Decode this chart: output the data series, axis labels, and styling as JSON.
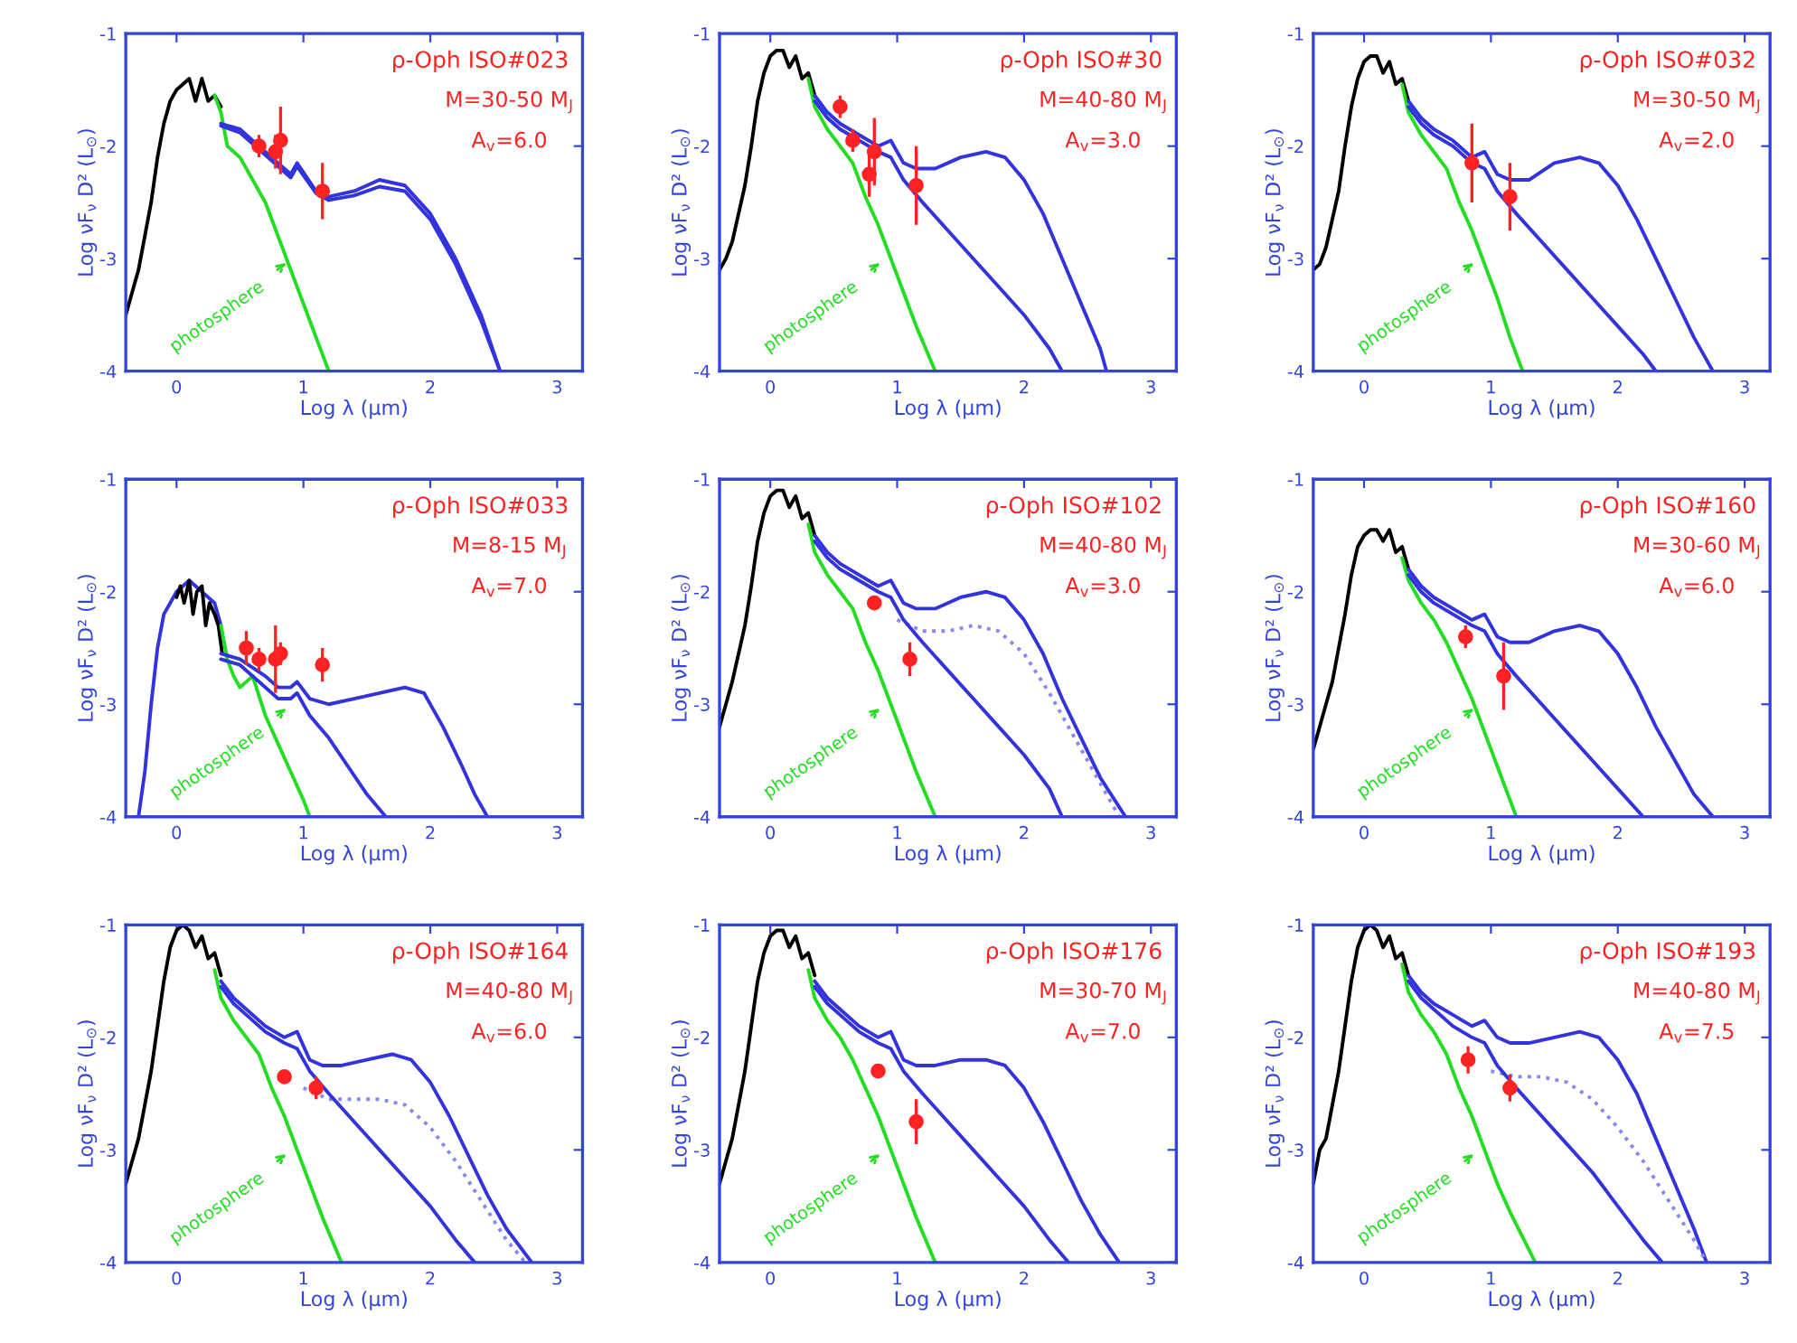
{
  "chart_data": [
    {
      "type": "line",
      "title": "ρ-Oph ISO#023",
      "xlabel": "Log λ (μm)",
      "ylabel": "Log νF$_{ν}$ D² (L$_{⊙}$)",
      "xlim": [
        -0.4,
        3.2
      ],
      "ylim": [
        -4,
        -1
      ],
      "xticks": [
        0,
        1,
        2,
        3
      ],
      "yticks": [
        -4,
        -3,
        -2,
        -1
      ],
      "marker": "none",
      "line_style": "solid",
      "annotations": [
        "M=30-50 M$_{J}$",
        "A$_{v}$=6.0",
        "photosphere"
      ],
      "series": [
        {
          "color": "#000000",
          "x": [
            -0.4,
            -0.35,
            -0.3,
            -0.25,
            -0.2,
            -0.15,
            -0.1,
            -0.05,
            0,
            0.05,
            0.1,
            0.15,
            0.2,
            0.25,
            0.3,
            0.35
          ],
          "values": [
            -3.5,
            -3.3,
            -3.1,
            -2.8,
            -2.5,
            -2.1,
            -1.8,
            -1.6,
            -1.5,
            -1.45,
            -1.4,
            -1.6,
            -1.4,
            -1.6,
            -1.55,
            -1.65
          ]
        },
        {
          "color": "#22dd22",
          "x": [
            0.3,
            0.35,
            0.4,
            0.5,
            0.6,
            0.7,
            0.8,
            0.9,
            1.0,
            1.1,
            1.2
          ],
          "values": [
            -1.55,
            -1.7,
            -2.0,
            -2.1,
            -2.3,
            -2.5,
            -2.8,
            -3.1,
            -3.4,
            -3.7,
            -4.0
          ]
        },
        {
          "color": "#3333dd",
          "x": [
            0.35,
            0.5,
            0.65,
            0.8,
            0.9,
            0.95,
            1.1,
            1.2,
            1.4,
            1.6,
            1.8,
            2.0,
            2.2,
            2.4,
            2.55
          ],
          "values": [
            -1.8,
            -1.85,
            -2.0,
            -2.15,
            -2.25,
            -2.15,
            -2.4,
            -2.45,
            -2.4,
            -2.3,
            -2.35,
            -2.6,
            -3.0,
            -3.5,
            -4.0
          ]
        },
        {
          "color": "#3333dd",
          "x": [
            0.35,
            0.5,
            0.65,
            0.8,
            0.9,
            0.95,
            1.1,
            1.2,
            1.4,
            1.6,
            1.8,
            2.0,
            2.2,
            2.4,
            2.55
          ],
          "values": [
            -1.82,
            -1.88,
            -2.03,
            -2.18,
            -2.28,
            -2.18,
            -2.42,
            -2.48,
            -2.44,
            -2.36,
            -2.4,
            -2.65,
            -3.05,
            -3.55,
            -4.0
          ]
        },
        {
          "type": "scatter",
          "color": "#ff2222",
          "marker": "circle",
          "x": [
            0.65,
            0.78,
            0.82,
            1.15
          ],
          "values": [
            -2.0,
            -2.05,
            -1.95,
            -2.4
          ],
          "errors": [
            0.1,
            0.15,
            0.3,
            0.25
          ]
        }
      ]
    },
    {
      "type": "line",
      "title": "ρ-Oph ISO#30",
      "xlabel": "Log λ (μm)",
      "ylabel": "Log νF$_{ν}$ D² (L$_{⊙}$)",
      "xlim": [
        -0.4,
        3.2
      ],
      "ylim": [
        -4,
        -1
      ],
      "xticks": [
        0,
        1,
        2,
        3
      ],
      "yticks": [
        -4,
        -3,
        -2,
        -1
      ],
      "marker": "none",
      "line_style": "solid",
      "annotations": [
        "M=40-80 M$_{J}$",
        "A$_{v}$=3.0",
        "photosphere"
      ],
      "series": [
        {
          "color": "#000000",
          "x": [
            -0.4,
            -0.35,
            -0.3,
            -0.25,
            -0.2,
            -0.15,
            -0.1,
            -0.05,
            0,
            0.05,
            0.1,
            0.15,
            0.2,
            0.25,
            0.3,
            0.35
          ],
          "values": [
            -3.1,
            -3.0,
            -2.85,
            -2.6,
            -2.35,
            -2.0,
            -1.6,
            -1.35,
            -1.2,
            -1.15,
            -1.15,
            -1.3,
            -1.2,
            -1.4,
            -1.35,
            -1.55
          ]
        },
        {
          "color": "#22dd22",
          "x": [
            0.3,
            0.35,
            0.45,
            0.55,
            0.65,
            0.75,
            0.85,
            0.95,
            1.05,
            1.15,
            1.3
          ],
          "values": [
            -1.4,
            -1.65,
            -1.85,
            -2.0,
            -2.15,
            -2.45,
            -2.7,
            -3.0,
            -3.3,
            -3.6,
            -4.0
          ]
        },
        {
          "color": "#3333dd",
          "x": [
            0.35,
            0.45,
            0.55,
            0.7,
            0.85,
            0.95,
            1.05,
            1.15,
            1.3,
            1.5,
            1.7,
            1.85,
            2.0,
            2.15,
            2.3,
            2.45,
            2.6,
            2.65
          ],
          "values": [
            -1.55,
            -1.7,
            -1.8,
            -1.9,
            -2.0,
            -1.95,
            -2.15,
            -2.2,
            -2.2,
            -2.1,
            -2.05,
            -2.1,
            -2.3,
            -2.6,
            -3.0,
            -3.4,
            -3.8,
            -4.0
          ]
        },
        {
          "color": "#3333dd",
          "x": [
            0.35,
            0.45,
            0.55,
            0.7,
            0.85,
            0.95,
            1.05,
            1.2,
            1.4,
            1.6,
            1.8,
            2.0,
            2.2,
            2.3
          ],
          "values": [
            -1.6,
            -1.75,
            -1.85,
            -1.95,
            -2.05,
            -2.1,
            -2.3,
            -2.5,
            -2.75,
            -3.0,
            -3.25,
            -3.5,
            -3.8,
            -4.0
          ]
        },
        {
          "type": "scatter",
          "color": "#ff2222",
          "marker": "circle",
          "x": [
            0.55,
            0.65,
            0.78,
            0.82,
            1.15
          ],
          "values": [
            -1.65,
            -1.95,
            -2.25,
            -2.05,
            -2.35
          ],
          "errors": [
            0.1,
            0.1,
            0.2,
            0.3,
            0.35
          ]
        }
      ]
    },
    {
      "type": "line",
      "title": "ρ-Oph ISO#032",
      "xlabel": "Log λ (μm)",
      "ylabel": "Log νF$_{ν}$ D² (L$_{⊙}$)",
      "xlim": [
        -0.4,
        3.2
      ],
      "ylim": [
        -4,
        -1
      ],
      "xticks": [
        0,
        1,
        2,
        3
      ],
      "yticks": [
        -4,
        -3,
        -2,
        -1
      ],
      "marker": "none",
      "line_style": "solid",
      "annotations": [
        "M=30-50 M$_{J}$",
        "A$_{v}$=2.0",
        "photosphere"
      ],
      "series": [
        {
          "color": "#000000",
          "x": [
            -0.4,
            -0.35,
            -0.3,
            -0.25,
            -0.2,
            -0.15,
            -0.1,
            -0.05,
            0,
            0.05,
            0.1,
            0.15,
            0.2,
            0.25,
            0.3,
            0.35
          ],
          "values": [
            -3.1,
            -3.05,
            -2.9,
            -2.65,
            -2.4,
            -2.0,
            -1.65,
            -1.4,
            -1.25,
            -1.2,
            -1.2,
            -1.35,
            -1.25,
            -1.45,
            -1.4,
            -1.6
          ]
        },
        {
          "color": "#22dd22",
          "x": [
            0.3,
            0.35,
            0.45,
            0.55,
            0.65,
            0.75,
            0.85,
            0.95,
            1.05,
            1.15,
            1.25
          ],
          "values": [
            -1.45,
            -1.7,
            -1.9,
            -2.05,
            -2.2,
            -2.5,
            -2.75,
            -3.05,
            -3.35,
            -3.7,
            -4.0
          ]
        },
        {
          "color": "#3333dd",
          "x": [
            0.35,
            0.45,
            0.55,
            0.7,
            0.85,
            0.95,
            1.05,
            1.15,
            1.3,
            1.5,
            1.7,
            1.85,
            2.0,
            2.15,
            2.3,
            2.45,
            2.6,
            2.75
          ],
          "values": [
            -1.6,
            -1.75,
            -1.85,
            -1.95,
            -2.1,
            -2.05,
            -2.25,
            -2.3,
            -2.3,
            -2.15,
            -2.1,
            -2.15,
            -2.35,
            -2.65,
            -3.0,
            -3.35,
            -3.7,
            -4.0
          ]
        },
        {
          "color": "#3333dd",
          "x": [
            0.35,
            0.45,
            0.55,
            0.7,
            0.85,
            0.95,
            1.05,
            1.2,
            1.4,
            1.6,
            1.8,
            2.0,
            2.2,
            2.3
          ],
          "values": [
            -1.65,
            -1.8,
            -1.9,
            -2.0,
            -2.15,
            -2.2,
            -2.4,
            -2.6,
            -2.85,
            -3.1,
            -3.35,
            -3.6,
            -3.85,
            -4.0
          ]
        },
        {
          "type": "scatter",
          "color": "#ff2222",
          "marker": "circle",
          "x": [
            0.85,
            1.15
          ],
          "values": [
            -2.15,
            -2.45
          ],
          "errors": [
            0.35,
            0.3
          ]
        }
      ]
    },
    {
      "type": "line",
      "title": "ρ-Oph ISO#033",
      "xlabel": "Log λ (μm)",
      "ylabel": "Log νF$_{ν}$ D² (L$_{⊙}$)",
      "xlim": [
        -0.4,
        3.2
      ],
      "ylim": [
        -4,
        -1
      ],
      "xticks": [
        0,
        1,
        2,
        3
      ],
      "yticks": [
        -4,
        -3,
        -2,
        -1
      ],
      "marker": "none",
      "line_style": "solid",
      "annotations": [
        "M=8-15 M$_{J}$",
        "A$_{v}$=7.0",
        "photosphere"
      ],
      "series": [
        {
          "color": "#3333dd",
          "x": [
            -0.3,
            -0.25,
            -0.2,
            -0.15,
            -0.1,
            -0.05,
            0,
            0.05,
            0.1,
            0.2,
            0.3,
            0.35
          ],
          "values": [
            -4.0,
            -3.6,
            -3.0,
            -2.5,
            -2.2,
            -2.1,
            -2.0,
            -1.95,
            -1.9,
            -2.0,
            -2.1,
            -2.3
          ]
        },
        {
          "color": "#000000",
          "x": [
            0.0,
            0.03,
            0.06,
            0.1,
            0.13,
            0.16,
            0.2,
            0.23,
            0.26,
            0.3,
            0.33,
            0.36
          ],
          "values": [
            -2.05,
            -1.95,
            -2.1,
            -1.9,
            -2.2,
            -2.0,
            -1.95,
            -2.3,
            -2.1,
            -2.2,
            -2.3,
            -2.55
          ]
        },
        {
          "color": "#22dd22",
          "x": [
            0.35,
            0.4,
            0.45,
            0.5,
            0.55,
            0.6,
            0.7,
            0.8,
            0.9,
            1.0,
            1.05
          ],
          "values": [
            -2.3,
            -2.6,
            -2.75,
            -2.85,
            -2.8,
            -2.75,
            -3.1,
            -3.35,
            -3.6,
            -3.85,
            -4.0
          ]
        },
        {
          "color": "#3333dd",
          "x": [
            0.35,
            0.5,
            0.7,
            0.8,
            0.9,
            0.95,
            1.05,
            1.2,
            1.4,
            1.6,
            1.8,
            1.95,
            2.1,
            2.25,
            2.35,
            2.45
          ],
          "values": [
            -2.55,
            -2.6,
            -2.75,
            -2.85,
            -2.85,
            -2.8,
            -2.95,
            -3.0,
            -2.95,
            -2.9,
            -2.85,
            -2.9,
            -3.2,
            -3.55,
            -3.8,
            -4.0
          ]
        },
        {
          "color": "#3333dd",
          "x": [
            0.35,
            0.5,
            0.7,
            0.8,
            0.9,
            0.95,
            1.05,
            1.2,
            1.35,
            1.5,
            1.65
          ],
          "values": [
            -2.6,
            -2.65,
            -2.85,
            -2.95,
            -2.95,
            -2.9,
            -3.1,
            -3.3,
            -3.55,
            -3.8,
            -4.0
          ]
        },
        {
          "type": "scatter",
          "color": "#ff2222",
          "marker": "circle",
          "x": [
            0.55,
            0.65,
            0.78,
            0.82,
            1.15
          ],
          "values": [
            -2.5,
            -2.6,
            -2.6,
            -2.55,
            -2.65
          ],
          "errors": [
            0.15,
            0.1,
            0.3,
            0.1,
            0.15
          ]
        }
      ]
    },
    {
      "type": "line",
      "title": "ρ-Oph ISO#102",
      "xlabel": "Log λ (μm)",
      "ylabel": "Log νF$_{ν}$ D² (L$_{⊙}$)",
      "xlim": [
        -0.4,
        3.2
      ],
      "ylim": [
        -4,
        -1
      ],
      "xticks": [
        0,
        1,
        2,
        3
      ],
      "yticks": [
        -4,
        -3,
        -2,
        -1
      ],
      "marker": "none",
      "line_style": "solid",
      "annotations": [
        "M=40-80 M$_{J}$",
        "A$_{v}$=3.0",
        "photosphere"
      ],
      "series": [
        {
          "color": "#000000",
          "x": [
            -0.4,
            -0.35,
            -0.3,
            -0.25,
            -0.2,
            -0.15,
            -0.1,
            -0.05,
            0,
            0.05,
            0.1,
            0.15,
            0.2,
            0.25,
            0.3,
            0.35
          ],
          "values": [
            -3.2,
            -3.0,
            -2.8,
            -2.55,
            -2.3,
            -1.95,
            -1.55,
            -1.3,
            -1.15,
            -1.1,
            -1.1,
            -1.25,
            -1.15,
            -1.35,
            -1.3,
            -1.5
          ]
        },
        {
          "color": "#22dd22",
          "x": [
            0.3,
            0.35,
            0.45,
            0.55,
            0.65,
            0.75,
            0.85,
            0.95,
            1.05,
            1.15,
            1.3
          ],
          "values": [
            -1.4,
            -1.65,
            -1.85,
            -2.0,
            -2.15,
            -2.45,
            -2.7,
            -3.0,
            -3.3,
            -3.6,
            -4.0
          ]
        },
        {
          "color": "#3333dd",
          "x": [
            0.35,
            0.45,
            0.55,
            0.7,
            0.85,
            0.95,
            1.05,
            1.15,
            1.3,
            1.5,
            1.7,
            1.85,
            2.0,
            2.15,
            2.3,
            2.45,
            2.6,
            2.8
          ],
          "values": [
            -1.5,
            -1.65,
            -1.75,
            -1.85,
            -1.95,
            -1.9,
            -2.1,
            -2.15,
            -2.15,
            -2.05,
            -2.0,
            -2.05,
            -2.25,
            -2.55,
            -2.95,
            -3.3,
            -3.65,
            -4.0
          ]
        },
        {
          "color": "#8888ee",
          "line_style": "dotted",
          "x": [
            1.0,
            1.2,
            1.4,
            1.6,
            1.8,
            2.0,
            2.2,
            2.4,
            2.6,
            2.75
          ],
          "values": [
            -2.25,
            -2.35,
            -2.35,
            -2.3,
            -2.35,
            -2.55,
            -2.9,
            -3.3,
            -3.7,
            -4.0
          ]
        },
        {
          "color": "#3333dd",
          "x": [
            0.35,
            0.45,
            0.55,
            0.7,
            0.85,
            0.95,
            1.05,
            1.2,
            1.4,
            1.6,
            1.8,
            2.0,
            2.2,
            2.3
          ],
          "values": [
            -1.55,
            -1.7,
            -1.8,
            -1.9,
            -2.0,
            -2.05,
            -2.25,
            -2.45,
            -2.7,
            -2.95,
            -3.2,
            -3.45,
            -3.75,
            -4.0
          ]
        },
        {
          "type": "scatter",
          "color": "#ff2222",
          "marker": "circle",
          "x": [
            0.82,
            1.1
          ],
          "values": [
            -2.1,
            -2.6
          ],
          "errors": [
            0.05,
            0.15
          ]
        }
      ]
    },
    {
      "type": "line",
      "title": "ρ-Oph ISO#160",
      "xlabel": "Log λ (μm)",
      "ylabel": "Log νF$_{ν}$ D² (L$_{⊙}$)",
      "xlim": [
        -0.4,
        3.2
      ],
      "ylim": [
        -4,
        -1
      ],
      "xticks": [
        0,
        1,
        2,
        3
      ],
      "yticks": [
        -4,
        -3,
        -2,
        -1
      ],
      "marker": "none",
      "line_style": "solid",
      "annotations": [
        "M=30-60 M$_{J}$",
        "A$_{v}$=6.0",
        "photosphere"
      ],
      "series": [
        {
          "color": "#000000",
          "x": [
            -0.4,
            -0.35,
            -0.3,
            -0.25,
            -0.2,
            -0.15,
            -0.1,
            -0.05,
            0,
            0.05,
            0.1,
            0.15,
            0.2,
            0.25,
            0.3,
            0.35
          ],
          "values": [
            -3.4,
            -3.2,
            -3.0,
            -2.8,
            -2.5,
            -2.2,
            -1.85,
            -1.6,
            -1.5,
            -1.45,
            -1.45,
            -1.55,
            -1.45,
            -1.65,
            -1.6,
            -1.8
          ]
        },
        {
          "color": "#22dd22",
          "x": [
            0.3,
            0.35,
            0.45,
            0.55,
            0.65,
            0.75,
            0.85,
            0.95,
            1.05,
            1.15,
            1.2
          ],
          "values": [
            -1.7,
            -1.9,
            -2.1,
            -2.25,
            -2.45,
            -2.7,
            -2.95,
            -3.25,
            -3.55,
            -3.85,
            -4.0
          ]
        },
        {
          "color": "#3333dd",
          "x": [
            0.35,
            0.45,
            0.55,
            0.7,
            0.85,
            0.95,
            1.05,
            1.15,
            1.3,
            1.5,
            1.7,
            1.85,
            2.0,
            2.15,
            2.3,
            2.45,
            2.6,
            2.75
          ],
          "values": [
            -1.8,
            -1.95,
            -2.05,
            -2.15,
            -2.25,
            -2.2,
            -2.4,
            -2.45,
            -2.45,
            -2.35,
            -2.3,
            -2.35,
            -2.55,
            -2.85,
            -3.2,
            -3.5,
            -3.8,
            -4.0
          ]
        },
        {
          "color": "#3333dd",
          "x": [
            0.35,
            0.45,
            0.55,
            0.7,
            0.85,
            0.95,
            1.05,
            1.2,
            1.4,
            1.6,
            1.8,
            2.0,
            2.2
          ],
          "values": [
            -1.85,
            -2.0,
            -2.1,
            -2.2,
            -2.3,
            -2.35,
            -2.55,
            -2.75,
            -3.0,
            -3.25,
            -3.5,
            -3.75,
            -4.0
          ]
        },
        {
          "type": "scatter",
          "color": "#ff2222",
          "marker": "circle",
          "x": [
            0.8,
            1.1
          ],
          "values": [
            -2.4,
            -2.75
          ],
          "errors": [
            0.1,
            0.3
          ]
        }
      ]
    },
    {
      "type": "line",
      "title": "ρ-Oph ISO#164",
      "xlabel": "Log λ (μm)",
      "ylabel": "Log νF$_{ν}$ D² (L$_{⊙}$)",
      "xlim": [
        -0.4,
        3.2
      ],
      "ylim": [
        -4,
        -1
      ],
      "xticks": [
        0,
        1,
        2,
        3
      ],
      "yticks": [
        -4,
        -3,
        -2,
        -1
      ],
      "marker": "none",
      "line_style": "solid",
      "annotations": [
        "M=40-80 M$_{J}$",
        "A$_{v}$=6.0",
        "photosphere"
      ],
      "series": [
        {
          "color": "#000000",
          "x": [
            -0.4,
            -0.35,
            -0.3,
            -0.25,
            -0.2,
            -0.15,
            -0.1,
            -0.05,
            0,
            0.05,
            0.1,
            0.15,
            0.2,
            0.25,
            0.3,
            0.35
          ],
          "values": [
            -3.3,
            -3.1,
            -2.9,
            -2.6,
            -2.3,
            -1.9,
            -1.5,
            -1.2,
            -1.05,
            -1.0,
            -1.05,
            -1.2,
            -1.1,
            -1.3,
            -1.25,
            -1.45
          ]
        },
        {
          "color": "#22dd22",
          "x": [
            0.3,
            0.35,
            0.45,
            0.55,
            0.65,
            0.75,
            0.85,
            0.95,
            1.05,
            1.15,
            1.3
          ],
          "values": [
            -1.4,
            -1.65,
            -1.85,
            -2.0,
            -2.15,
            -2.45,
            -2.7,
            -3.0,
            -3.3,
            -3.6,
            -4.0
          ]
        },
        {
          "color": "#3333dd",
          "x": [
            0.35,
            0.45,
            0.55,
            0.7,
            0.85,
            0.95,
            1.05,
            1.15,
            1.3,
            1.5,
            1.7,
            1.85,
            2.0,
            2.15,
            2.3,
            2.45,
            2.6,
            2.8
          ],
          "values": [
            -1.5,
            -1.65,
            -1.75,
            -1.9,
            -2.0,
            -1.95,
            -2.2,
            -2.25,
            -2.25,
            -2.2,
            -2.15,
            -2.2,
            -2.4,
            -2.7,
            -3.05,
            -3.4,
            -3.7,
            -4.0
          ]
        },
        {
          "color": "#8888ee",
          "line_style": "dotted",
          "x": [
            1.0,
            1.2,
            1.4,
            1.6,
            1.8,
            2.0,
            2.2,
            2.4,
            2.6,
            2.75
          ],
          "values": [
            -2.45,
            -2.55,
            -2.55,
            -2.55,
            -2.6,
            -2.8,
            -3.1,
            -3.45,
            -3.8,
            -4.0
          ]
        },
        {
          "color": "#3333dd",
          "x": [
            0.35,
            0.45,
            0.55,
            0.7,
            0.85,
            0.95,
            1.05,
            1.2,
            1.4,
            1.6,
            1.8,
            2.0,
            2.2,
            2.35
          ],
          "values": [
            -1.55,
            -1.7,
            -1.8,
            -1.95,
            -2.05,
            -2.1,
            -2.3,
            -2.5,
            -2.75,
            -3.0,
            -3.25,
            -3.5,
            -3.8,
            -4.0
          ]
        },
        {
          "type": "scatter",
          "color": "#ff2222",
          "marker": "circle",
          "x": [
            0.85,
            1.1
          ],
          "values": [
            -2.35,
            -2.45
          ],
          "errors": [
            0.05,
            0.1
          ]
        }
      ]
    },
    {
      "type": "line",
      "title": "ρ-Oph ISO#176",
      "xlabel": "Log λ (μm)",
      "ylabel": "Log νF$_{ν}$ D² (L$_{⊙}$)",
      "xlim": [
        -0.4,
        3.2
      ],
      "ylim": [
        -4,
        -1
      ],
      "xticks": [
        0,
        1,
        2,
        3
      ],
      "yticks": [
        -4,
        -3,
        -2,
        -1
      ],
      "marker": "none",
      "line_style": "solid",
      "annotations": [
        "M=30-70 M$_{J}$",
        "A$_{v}$=7.0",
        "photosphere"
      ],
      "series": [
        {
          "color": "#000000",
          "x": [
            -0.4,
            -0.35,
            -0.3,
            -0.25,
            -0.2,
            -0.15,
            -0.1,
            -0.05,
            0,
            0.05,
            0.1,
            0.15,
            0.2,
            0.25,
            0.3,
            0.35
          ],
          "values": [
            -3.3,
            -3.1,
            -2.9,
            -2.6,
            -2.3,
            -1.9,
            -1.5,
            -1.25,
            -1.1,
            -1.05,
            -1.05,
            -1.2,
            -1.1,
            -1.3,
            -1.25,
            -1.45
          ]
        },
        {
          "color": "#22dd22",
          "x": [
            0.3,
            0.35,
            0.45,
            0.55,
            0.65,
            0.75,
            0.85,
            0.95,
            1.05,
            1.15,
            1.3
          ],
          "values": [
            -1.4,
            -1.65,
            -1.85,
            -2.0,
            -2.2,
            -2.45,
            -2.7,
            -3.0,
            -3.3,
            -3.6,
            -4.0
          ]
        },
        {
          "color": "#3333dd",
          "x": [
            0.35,
            0.45,
            0.55,
            0.7,
            0.85,
            0.95,
            1.05,
            1.15,
            1.3,
            1.5,
            1.7,
            1.85,
            2.0,
            2.15,
            2.3,
            2.45,
            2.6,
            2.75
          ],
          "values": [
            -1.5,
            -1.65,
            -1.75,
            -1.9,
            -2.0,
            -1.95,
            -2.2,
            -2.25,
            -2.25,
            -2.2,
            -2.2,
            -2.25,
            -2.45,
            -2.75,
            -3.1,
            -3.45,
            -3.75,
            -4.0
          ]
        },
        {
          "color": "#3333dd",
          "x": [
            0.35,
            0.45,
            0.55,
            0.7,
            0.85,
            0.95,
            1.05,
            1.2,
            1.4,
            1.6,
            1.8,
            2.0,
            2.2,
            2.35
          ],
          "values": [
            -1.55,
            -1.7,
            -1.8,
            -1.95,
            -2.05,
            -2.1,
            -2.3,
            -2.5,
            -2.75,
            -3.0,
            -3.25,
            -3.5,
            -3.8,
            -4.0
          ]
        },
        {
          "type": "scatter",
          "color": "#ff2222",
          "marker": "circle",
          "x": [
            0.85,
            1.15
          ],
          "values": [
            -2.3,
            -2.75
          ],
          "errors": [
            0.05,
            0.2
          ]
        }
      ]
    },
    {
      "type": "line",
      "title": "ρ-Oph ISO#193",
      "xlabel": "Log λ (μm)",
      "ylabel": "Log νF$_{ν}$ D² (L$_{⊙}$)",
      "xlim": [
        -0.4,
        3.2
      ],
      "ylim": [
        -4,
        -1
      ],
      "xticks": [
        0,
        1,
        2,
        3
      ],
      "yticks": [
        -4,
        -3,
        -2,
        -1
      ],
      "marker": "none",
      "line_style": "solid",
      "annotations": [
        "M=40-80 M$_{J}$",
        "A$_{v}$=7.5",
        "photosphere"
      ],
      "series": [
        {
          "color": "#000000",
          "x": [
            -0.4,
            -0.35,
            -0.3,
            -0.25,
            -0.2,
            -0.15,
            -0.1,
            -0.05,
            0,
            0.05,
            0.1,
            0.15,
            0.2,
            0.25,
            0.3,
            0.35
          ],
          "values": [
            -3.3,
            -3.0,
            -2.9,
            -2.6,
            -2.3,
            -1.9,
            -1.5,
            -1.2,
            -1.05,
            -1.0,
            -1.05,
            -1.2,
            -1.1,
            -1.3,
            -1.25,
            -1.45
          ]
        },
        {
          "color": "#22dd22",
          "x": [
            0.3,
            0.35,
            0.45,
            0.55,
            0.65,
            0.75,
            0.85,
            0.95,
            1.05,
            1.15,
            1.35
          ],
          "values": [
            -1.35,
            -1.6,
            -1.8,
            -1.95,
            -2.15,
            -2.45,
            -2.7,
            -3.0,
            -3.3,
            -3.55,
            -4.0
          ]
        },
        {
          "color": "#3333dd",
          "x": [
            0.35,
            0.45,
            0.55,
            0.7,
            0.85,
            0.95,
            1.05,
            1.15,
            1.3,
            1.5,
            1.7,
            1.85,
            2.0,
            2.15,
            2.3,
            2.45,
            2.6,
            2.7
          ],
          "values": [
            -1.45,
            -1.6,
            -1.7,
            -1.8,
            -1.9,
            -1.85,
            -2.0,
            -2.05,
            -2.05,
            -2.0,
            -1.95,
            -2.0,
            -2.2,
            -2.5,
            -2.9,
            -3.3,
            -3.7,
            -4.0
          ]
        },
        {
          "color": "#8888ee",
          "line_style": "dotted",
          "x": [
            1.0,
            1.2,
            1.4,
            1.6,
            1.8,
            2.0,
            2.2,
            2.4,
            2.6,
            2.7
          ],
          "values": [
            -2.3,
            -2.35,
            -2.35,
            -2.4,
            -2.55,
            -2.8,
            -3.1,
            -3.45,
            -3.8,
            -4.0
          ]
        },
        {
          "color": "#3333dd",
          "x": [
            0.35,
            0.45,
            0.55,
            0.7,
            0.85,
            0.95,
            1.05,
            1.2,
            1.4,
            1.6,
            1.8,
            2.0,
            2.2,
            2.35
          ],
          "values": [
            -1.5,
            -1.65,
            -1.75,
            -1.9,
            -2.0,
            -2.05,
            -2.25,
            -2.45,
            -2.7,
            -2.95,
            -3.2,
            -3.5,
            -3.8,
            -4.0
          ]
        },
        {
          "type": "scatter",
          "color": "#ff2222",
          "marker": "circle",
          "x": [
            0.82,
            1.15
          ],
          "values": [
            -2.2,
            -2.45
          ],
          "errors": [
            0.12,
            0.12
          ]
        }
      ]
    }
  ]
}
